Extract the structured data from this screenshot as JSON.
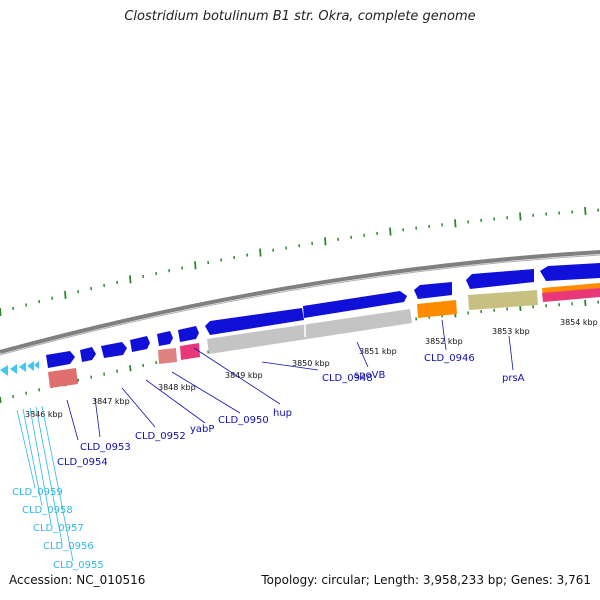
{
  "title": "Clostridium botulinum B1 str. Okra, complete genome",
  "footer": {
    "accession": "Accession: NC_010516",
    "summary": "Topology: circular; Length: 3,958,233 bp; Genes: 3,761"
  },
  "colors": {
    "forward_gene": "#1010d8",
    "gray_gene": "#c4c4c4",
    "orange_gene": "#ff8c00",
    "olive_gene": "#c8c080",
    "pink_gene": "#e8387a",
    "salmon_gene": "#e07070",
    "cyan_gene": "#40c8f0",
    "ticks": "#2a8a2a",
    "backbone": "#808080",
    "label_blue": "#1010b0",
    "label_cyan": "#30b8e8"
  },
  "scale_labels": [
    "3846 kbp",
    "3847 kbp",
    "3848 kbp",
    "3849 kbp",
    "3850 kbp",
    "3851 kbp",
    "3852 kbp",
    "3853 kbp",
    "3854 kbp"
  ],
  "gene_labels": [
    "CLD_0959",
    "CLD_0958",
    "CLD_0957",
    "CLD_0956",
    "CLD_0955",
    "CLD_0954",
    "CLD_0953",
    "CLD_0952",
    "yabP",
    "CLD_0950",
    "hup",
    "CLD_0948",
    "spoVB",
    "CLD_0946",
    "prsA"
  ]
}
